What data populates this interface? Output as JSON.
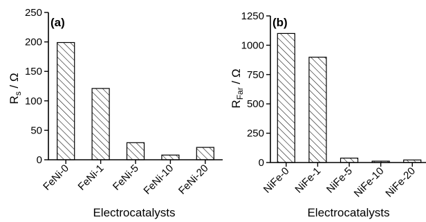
{
  "chart_data": [
    {
      "type": "bar",
      "panel_label": "(a)",
      "categories": [
        "FeNi-0",
        "FeNi-1",
        "FeNi-5",
        "FeNi-10",
        "FeNi-20"
      ],
      "values": [
        199,
        121,
        29,
        8,
        21
      ],
      "xlabel": "Electrocatalysts",
      "ylabel_main": "R",
      "ylabel_sub": "s",
      "ylabel_unit": " / Ω",
      "ylim": [
        0,
        250
      ],
      "yticks": [
        "0",
        "50",
        "100",
        "150",
        "200",
        "250"
      ],
      "grid": false,
      "bar_pattern": "diagonal-hatch"
    },
    {
      "type": "bar",
      "panel_label": "(b)",
      "categories": [
        "NiFe-0",
        "NiFe-1",
        "NiFe-5",
        "NiFe-10",
        "NiFe-20"
      ],
      "values": [
        1100,
        898,
        38,
        12,
        22
      ],
      "xlabel": "Electrocatalysts",
      "ylabel_main": "R",
      "ylabel_sub": "Far",
      "ylabel_unit": " / Ω",
      "ylim": [
        0,
        1250
      ],
      "yticks": [
        "0",
        "250",
        "500",
        "750",
        "1000",
        "1250"
      ],
      "grid": false,
      "bar_pattern": "diagonal-hatch"
    }
  ]
}
